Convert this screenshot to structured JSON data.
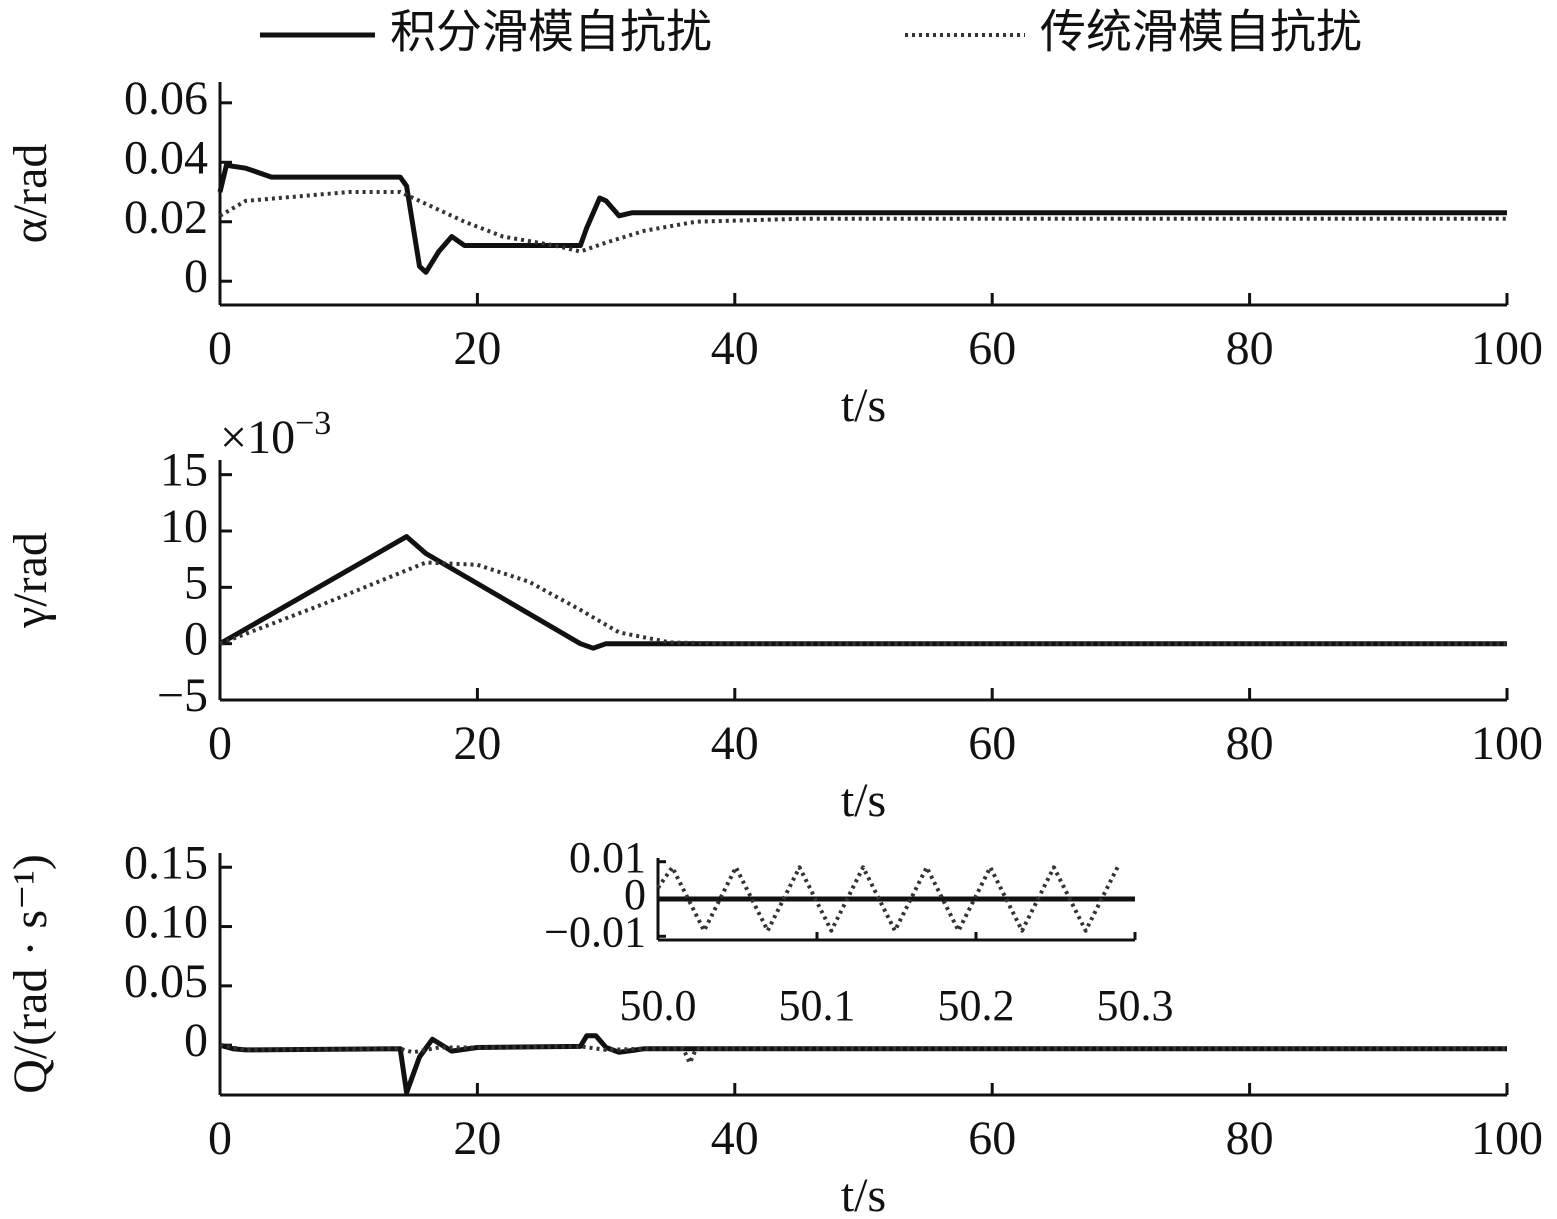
{
  "chart_data": [
    {
      "type": "line",
      "legend": "top",
      "ylabel": "α/rad",
      "xlabel": "t/s",
      "xlim": [
        0,
        100
      ],
      "xticks": [
        0,
        20,
        40,
        60,
        80,
        100
      ],
      "ylim": [
        -0.008,
        0.067
      ],
      "yticks": [
        0,
        0.02,
        0.04,
        0.06
      ],
      "series": [
        {
          "name": "积分滑模自抗扰",
          "color": "#111111",
          "style": "solid",
          "x": [
            0,
            0.5,
            2,
            4,
            10,
            14,
            14.5,
            15.5,
            16,
            17,
            18,
            19,
            20,
            24,
            28,
            28.5,
            29.5,
            30,
            31,
            32,
            33,
            35,
            40,
            100
          ],
          "values": [
            0.03,
            0.039,
            0.038,
            0.035,
            0.035,
            0.035,
            0.032,
            0.005,
            0.003,
            0.01,
            0.015,
            0.012,
            0.012,
            0.012,
            0.012,
            0.018,
            0.028,
            0.027,
            0.022,
            0.023,
            0.023,
            0.023,
            0.023,
            0.023
          ]
        },
        {
          "name": "传统滑模自抗扰",
          "color": "#333333",
          "style": "dotted",
          "x": [
            0,
            2,
            10,
            14,
            16,
            19,
            22,
            26,
            28,
            30,
            33,
            37,
            45,
            100
          ],
          "values": [
            0.022,
            0.027,
            0.03,
            0.03,
            0.026,
            0.02,
            0.015,
            0.012,
            0.01,
            0.013,
            0.017,
            0.02,
            0.021,
            0.021
          ]
        }
      ]
    },
    {
      "type": "line",
      "ylabel": "γ/rad",
      "xlabel": "t/s",
      "y_multiplier": "×10",
      "y_multiplier_exponent": "−3",
      "xlim": [
        0,
        100
      ],
      "xticks": [
        0,
        20,
        40,
        60,
        80,
        100
      ],
      "ylim": [
        -5,
        16.3
      ],
      "yticks": [
        {
          "value": -5,
          "label": "−5"
        },
        0,
        5,
        10,
        15
      ],
      "series": [
        {
          "name": "积分滑模自抗扰",
          "color": "#111111",
          "style": "solid",
          "x": [
            0,
            14.5,
            16,
            28,
            29,
            30,
            100
          ],
          "values": [
            0,
            9.5,
            8,
            0,
            -0.4,
            0,
            0
          ]
        },
        {
          "name": "传统滑模自抗扰",
          "color": "#333333",
          "style": "dotted",
          "x": [
            0,
            8,
            16,
            20,
            24,
            28,
            31,
            35,
            40,
            100
          ],
          "values": [
            0,
            3.5,
            7.2,
            7,
            5.5,
            3,
            1,
            0.1,
            0,
            0
          ]
        }
      ]
    },
    {
      "type": "line",
      "ylabel": "Q/(rad · s⁻¹)",
      "xlabel": "t/s",
      "xlim": [
        0,
        100
      ],
      "xticks": [
        0,
        20,
        40,
        60,
        80,
        100
      ],
      "ylim": [
        -0.042,
        0.162
      ],
      "yticks": [
        0,
        0.05,
        {
          "value": 0.1,
          "label": "0.10"
        },
        0.15
      ],
      "series": [
        {
          "name": "积分滑模自抗扰",
          "color": "#111111",
          "style": "solid",
          "x": [
            0,
            1,
            2,
            14,
            14.5,
            15.5,
            16.5,
            18,
            20,
            28,
            28.5,
            29.2,
            30,
            31,
            33,
            100
          ],
          "values": [
            0,
            -0.003,
            -0.004,
            -0.003,
            -0.04,
            -0.01,
            0.005,
            -0.005,
            -0.002,
            -0.001,
            0.008,
            0.008,
            -0.002,
            -0.006,
            -0.003,
            -0.003
          ]
        },
        {
          "name": "传统滑模自抗扰",
          "color": "#333333",
          "style": "dotted",
          "x": [
            0,
            1,
            2,
            14,
            15,
            17,
            20,
            28,
            30,
            33,
            36,
            36.5,
            37,
            41,
            100
          ],
          "values": [
            0,
            -0.002,
            -0.004,
            -0.003,
            -0.006,
            -0.002,
            -0.002,
            -0.001,
            -0.004,
            -0.003,
            -0.003,
            -0.015,
            -0.003,
            -0.003,
            -0.003
          ]
        }
      ]
    },
    {
      "type": "line",
      "inset": true,
      "xlim": [
        50.0,
        50.3
      ],
      "xticks": [
        {
          "value": 50.0,
          "label": "50.0"
        },
        50.1,
        50.2,
        50.3
      ],
      "ylim": [
        -0.011,
        0.011
      ],
      "yticks": [
        {
          "value": -0.01,
          "label": "−0.01"
        },
        0,
        0.01
      ],
      "series": [
        {
          "name": "积分滑模自抗扰",
          "color": "#111111",
          "style": "solid",
          "x": [
            50.0,
            50.3
          ],
          "values": [
            0,
            0
          ]
        },
        {
          "name": "传统滑模自抗扰",
          "color": "#333333",
          "style": "dotted",
          "x": [
            50.0,
            50.009,
            50.019,
            50.029,
            50.039,
            50.049,
            50.059,
            50.069,
            50.079,
            50.089,
            50.099,
            50.109,
            50.119,
            50.129,
            50.139,
            50.149,
            50.159,
            50.169,
            50.179,
            50.189,
            50.199,
            50.209,
            50.219,
            50.229,
            50.239,
            50.249,
            50.259,
            50.269,
            50.279,
            50.289
          ],
          "values": [
            0.003,
            0.0085,
            0,
            -0.0085,
            0,
            0.0085,
            0,
            -0.0085,
            0,
            0.0085,
            0,
            -0.0085,
            0,
            0.0085,
            0,
            -0.0085,
            0,
            0.0085,
            0,
            -0.0085,
            0,
            0.0085,
            0,
            -0.0085,
            0,
            0.0085,
            0,
            -0.0085,
            0,
            0.0085
          ]
        }
      ]
    }
  ]
}
